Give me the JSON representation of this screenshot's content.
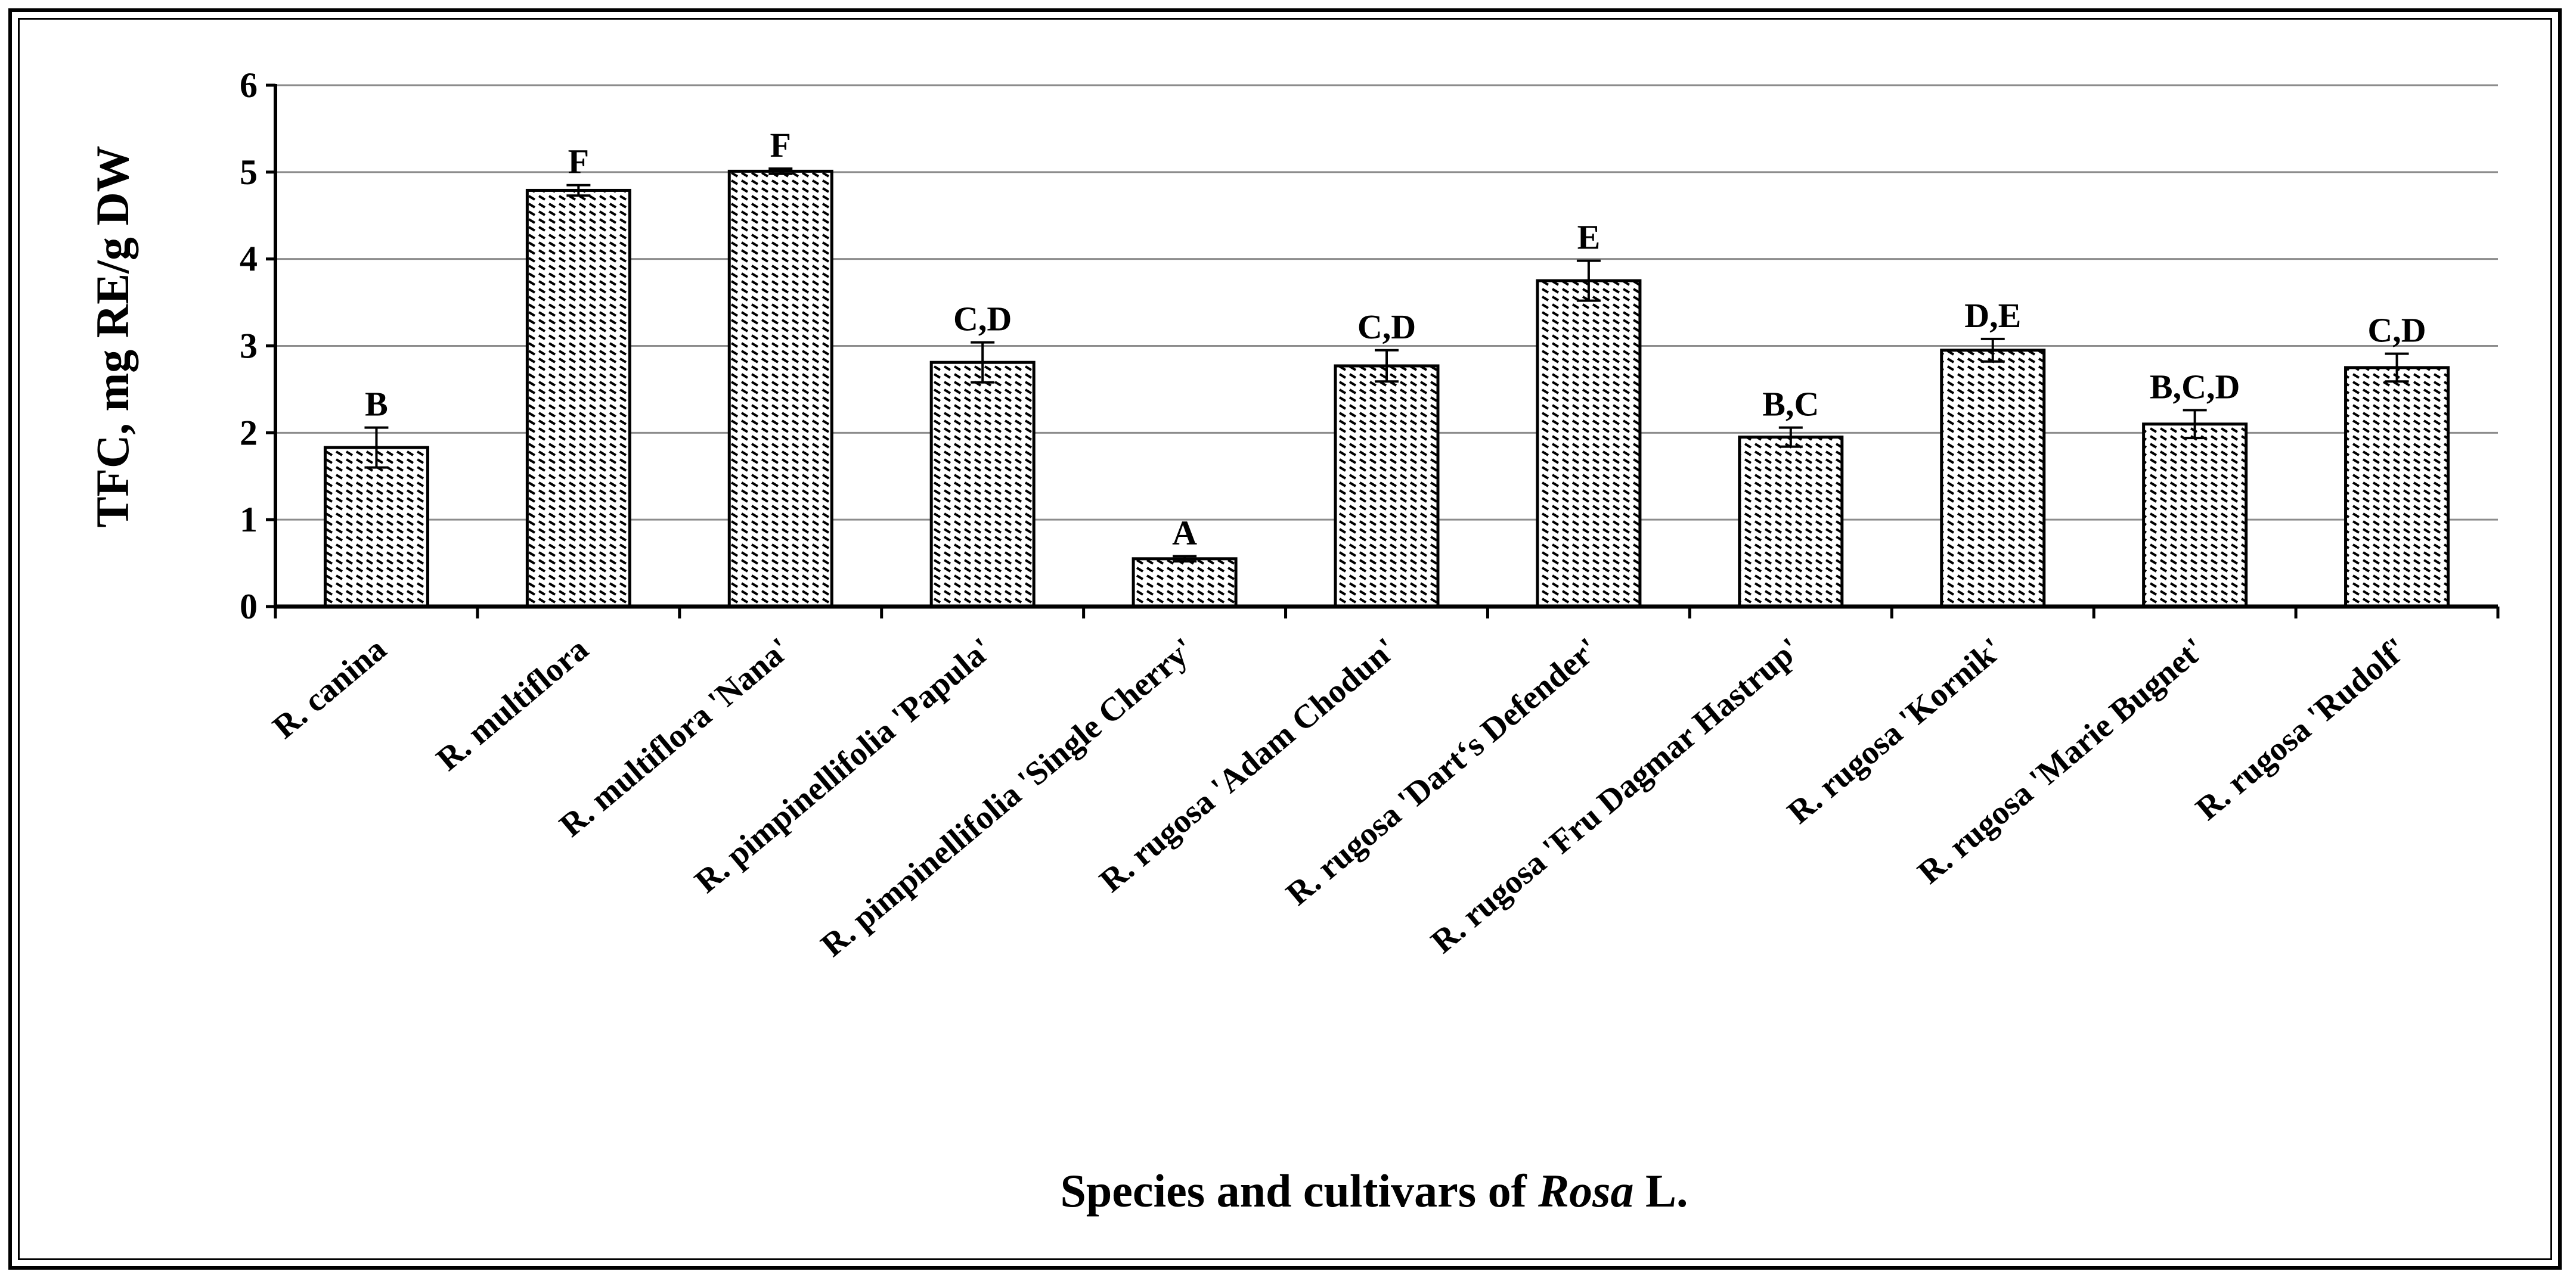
{
  "chart_data": {
    "type": "bar",
    "ylabel": "TFC, mg RE/g DW",
    "xlabel": {
      "prefix": "Species and cultivars of ",
      "italic": "Rosa",
      "suffix": " L."
    },
    "ylim": [
      0,
      6
    ],
    "yticks": [
      "0",
      "1",
      "2",
      "3",
      "4",
      "5",
      "6"
    ],
    "grid": true,
    "categories": [
      "R. canina",
      "R. multiflora",
      "R. multiflora 'Nana'",
      "R. pimpinellifolia 'Papula'",
      "R. pimpinellifolia 'Single Cherry'",
      "R. rugosa 'Adam Chodun'",
      "R. rugosa 'Dart‘s Defender'",
      "R. rugosa 'Fru Dagmar Hastrup'",
      "R. rugosa 'Kornik'",
      "R. rugosa 'Marie Bugnet'",
      "R. rugosa 'Rudolf'"
    ],
    "values": [
      1.83,
      4.79,
      5.01,
      2.81,
      0.55,
      2.77,
      3.75,
      1.95,
      2.95,
      2.1,
      2.75
    ],
    "errors": [
      0.23,
      0.06,
      0.03,
      0.23,
      0.03,
      0.18,
      0.23,
      0.11,
      0.13,
      0.16,
      0.16
    ],
    "letters": [
      "B",
      "F",
      "F",
      "C,D",
      "A",
      "C,D",
      "E",
      "B,C",
      "D,E",
      "B,C,D",
      "C,D"
    ],
    "colors": {
      "bar_fill": "#ffffff",
      "hatch": "#000000",
      "grid": "#8c8c8c",
      "axis": "#000000"
    }
  }
}
